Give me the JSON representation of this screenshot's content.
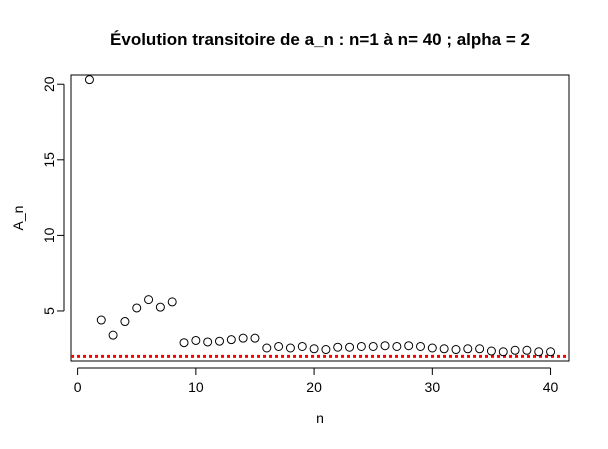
{
  "chart_data": {
    "type": "scatter",
    "title": "Évolution transitoire de a_n : n=1 à n= 40 ; alpha =  2",
    "xlabel": "n",
    "ylabel": "A_n",
    "xlim": [
      -0.56,
      41.56
    ],
    "ylim": [
      1.69,
      20.61
    ],
    "x_ticks": [
      0,
      10,
      20,
      30,
      40
    ],
    "y_ticks": [
      5,
      10,
      15,
      20
    ],
    "grid": false,
    "points": {
      "x": [
        1,
        2,
        3,
        4,
        5,
        6,
        7,
        8,
        9,
        10,
        11,
        12,
        13,
        14,
        15,
        16,
        17,
        18,
        19,
        20,
        21,
        22,
        23,
        24,
        25,
        26,
        27,
        28,
        29,
        30,
        31,
        32,
        33,
        34,
        35,
        36,
        37,
        38,
        39,
        40
      ],
      "y": [
        20.3,
        4.4,
        3.4,
        4.3,
        5.2,
        5.75,
        5.25,
        5.6,
        2.9,
        3.05,
        2.95,
        3.0,
        3.1,
        3.2,
        3.2,
        2.55,
        2.65,
        2.55,
        2.65,
        2.5,
        2.45,
        2.6,
        2.6,
        2.65,
        2.65,
        2.7,
        2.65,
        2.7,
        2.65,
        2.55,
        2.5,
        2.45,
        2.5,
        2.5,
        2.35,
        2.3,
        2.4,
        2.4,
        2.3,
        2.3
      ]
    },
    "reference_line": {
      "y": 2,
      "color": "#ff0000",
      "style": "dotted"
    },
    "marker_color": "#000000",
    "marker": "open-circle"
  }
}
